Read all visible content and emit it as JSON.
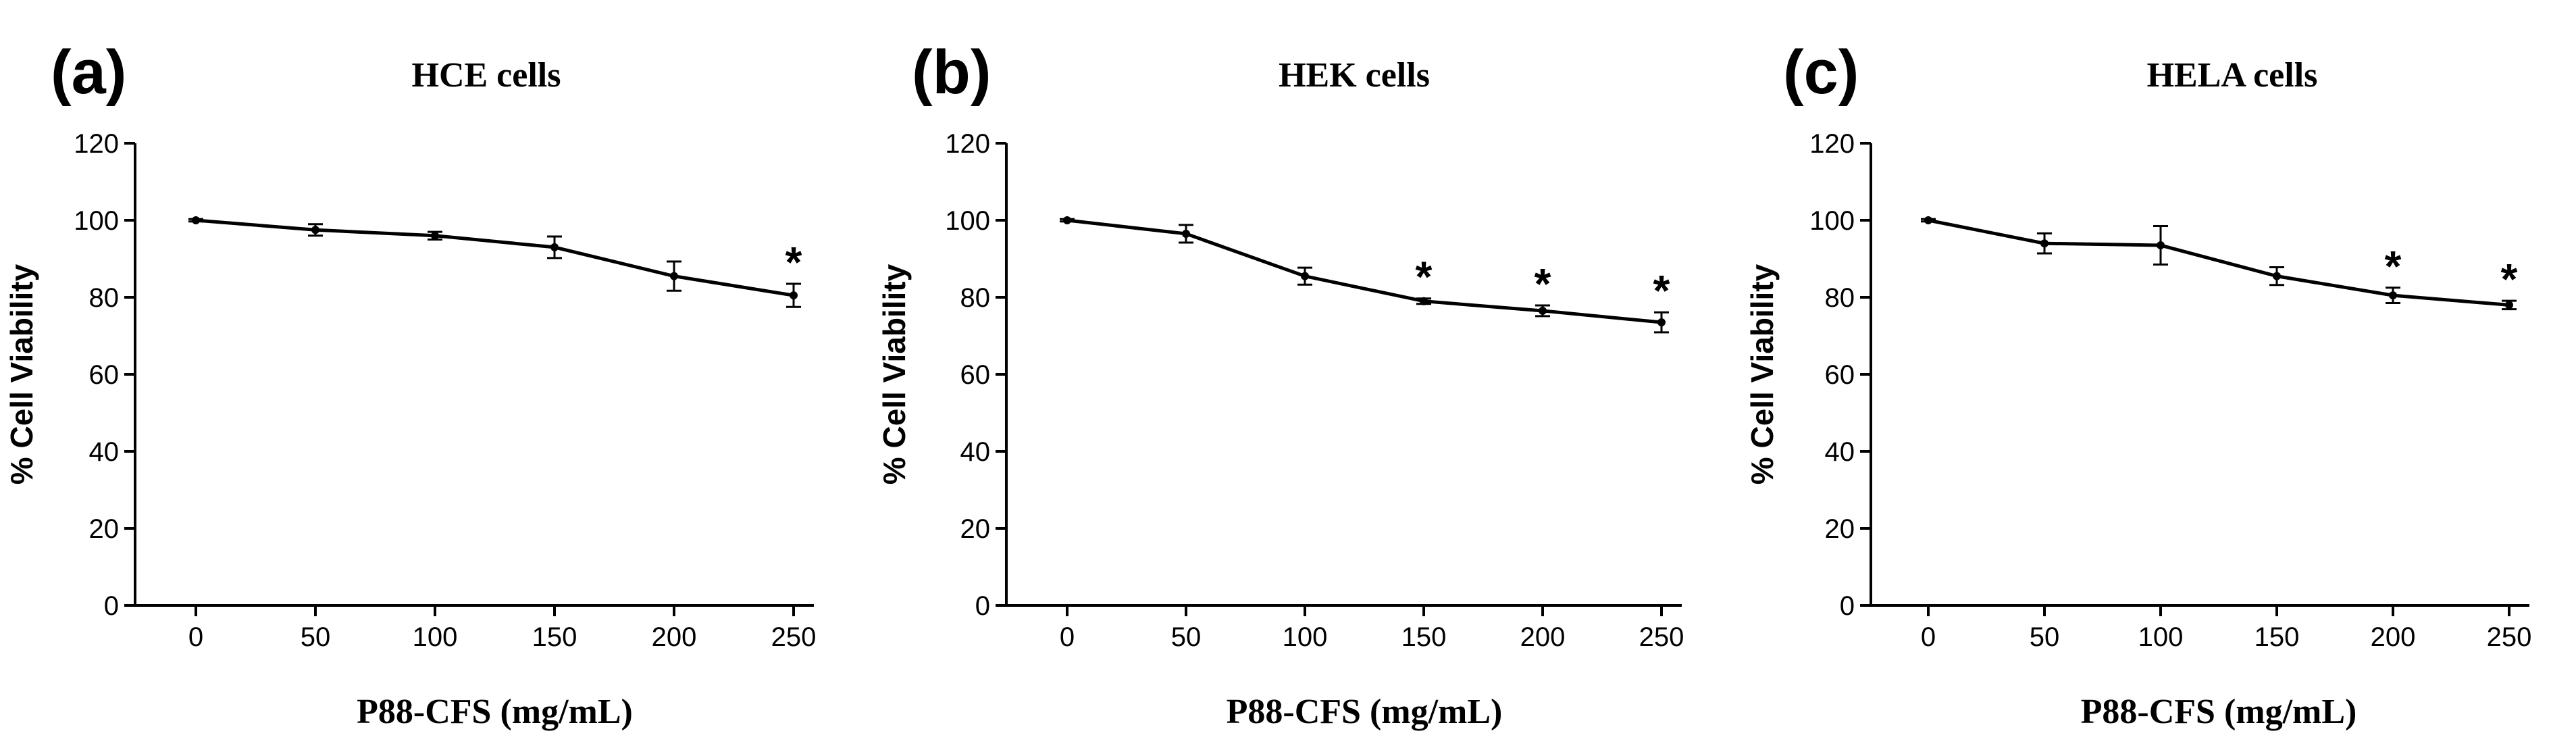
{
  "chart_data": [
    {
      "panel_label": "(a)",
      "title": "HCE cells",
      "type": "line",
      "xlabel": "P88-CFS (mg/mL)",
      "ylabel": "% Cell Viability",
      "x_ticks": [
        "0",
        "50",
        "100",
        "150",
        "200",
        "250"
      ],
      "y_ticks": [
        "0",
        "20",
        "40",
        "60",
        "80",
        "100",
        "120"
      ],
      "ylim": [
        0,
        120
      ],
      "x": [
        0,
        50,
        100,
        150,
        200,
        250
      ],
      "values": [
        100,
        97.5,
        96,
        93,
        85.5,
        80.5
      ],
      "errors": [
        0.3,
        1.5,
        1,
        2.8,
        3.8,
        3
      ],
      "significant": [
        false,
        false,
        false,
        false,
        false,
        true
      ],
      "significance_marker": "*"
    },
    {
      "panel_label": "(b)",
      "title": "HEK cells",
      "type": "line",
      "xlabel": "P88-CFS (mg/mL)",
      "ylabel": "% Cell Viability",
      "x_ticks": [
        "0",
        "50",
        "100",
        "150",
        "200",
        "250"
      ],
      "y_ticks": [
        "0",
        "20",
        "40",
        "60",
        "80",
        "100",
        "120"
      ],
      "ylim": [
        0,
        120
      ],
      "x": [
        0,
        50,
        100,
        150,
        200,
        250
      ],
      "values": [
        100,
        96.5,
        85.5,
        79,
        76.5,
        73.5
      ],
      "errors": [
        0.3,
        2.3,
        2.2,
        0.7,
        1.4,
        2.6
      ],
      "significant": [
        false,
        false,
        false,
        true,
        true,
        true
      ],
      "significance_marker": "*"
    },
    {
      "panel_label": "(c)",
      "title": "HELA cells",
      "type": "line",
      "xlabel": "P88-CFS (mg/mL)",
      "ylabel": "% Cell Viability",
      "x_ticks": [
        "0",
        "50",
        "100",
        "150",
        "200",
        "250"
      ],
      "y_ticks": [
        "0",
        "20",
        "40",
        "60",
        "80",
        "100",
        "120"
      ],
      "ylim": [
        0,
        120
      ],
      "x": [
        0,
        50,
        100,
        150,
        200,
        250
      ],
      "values": [
        100,
        94,
        93.5,
        85.5,
        80.5,
        78
      ],
      "errors": [
        0.3,
        2.6,
        5,
        2.3,
        2,
        1.1
      ],
      "significant": [
        false,
        false,
        false,
        false,
        true,
        true
      ],
      "significance_marker": "*"
    }
  ]
}
